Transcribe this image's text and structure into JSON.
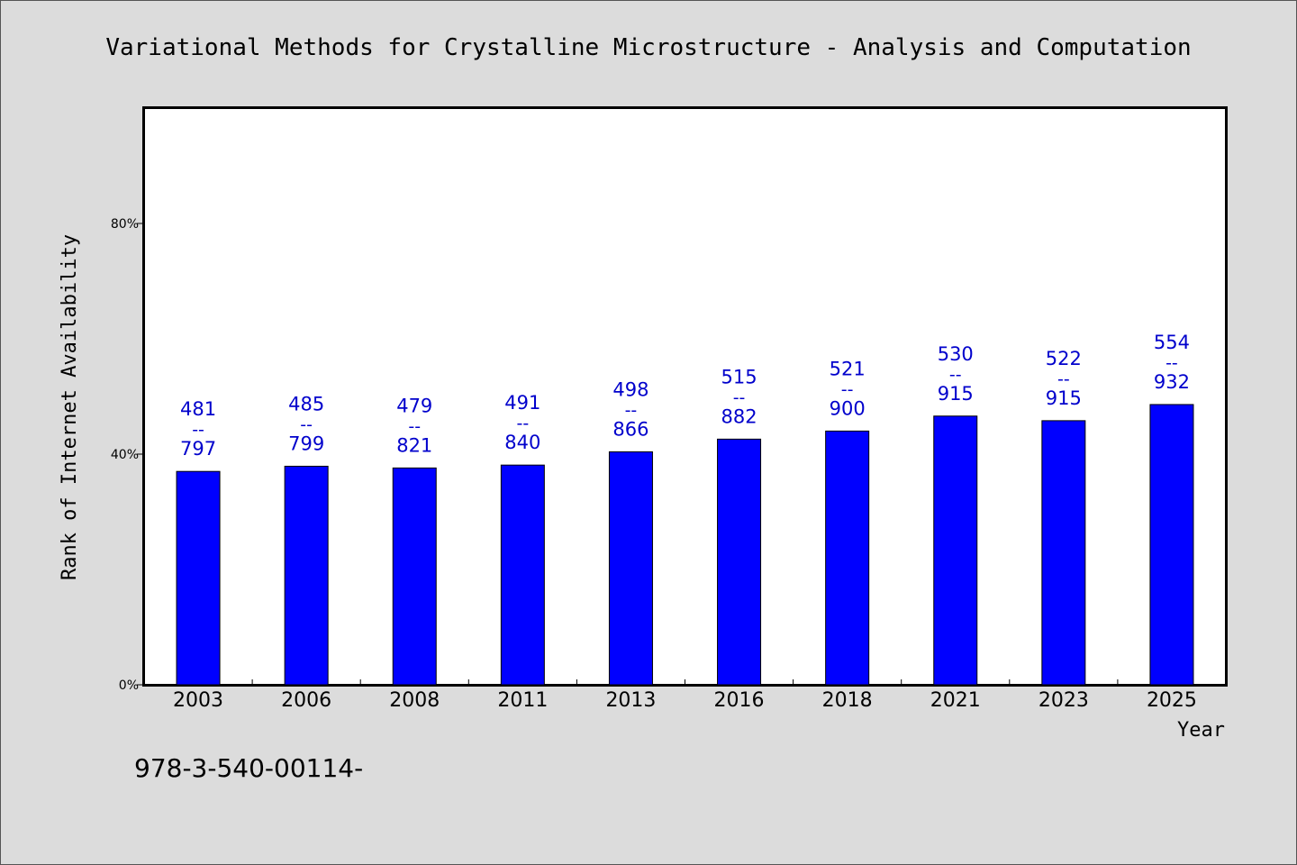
{
  "footer_text": "978-3-540-00114-",
  "chart_data": {
    "type": "bar",
    "title": "Variational Methods for Crystalline Microstructure - Analysis and Computation",
    "xlabel": "Year",
    "ylabel": "Rank of Internet Availability",
    "ylim": [
      0,
      1
    ],
    "y_ticks": [
      {
        "value": 0,
        "label": "0%"
      },
      {
        "value": 0.4,
        "label": "40%"
      },
      {
        "value": 0.8,
        "label": "80%"
      }
    ],
    "grid": false,
    "bar_color": "#0000ff",
    "label_color": "#0000cc",
    "categories": [
      "2003",
      "2006",
      "2008",
      "2011",
      "2013",
      "2016",
      "2018",
      "2021",
      "2023",
      "2025"
    ],
    "values": [
      0.37,
      0.379,
      0.376,
      0.381,
      0.404,
      0.426,
      0.44,
      0.466,
      0.458,
      0.486
    ],
    "labels_top": [
      "481",
      "485",
      "479",
      "491",
      "498",
      "515",
      "521",
      "530",
      "522",
      "554"
    ],
    "labels_sep": "--",
    "labels_bottom": [
      "797",
      "799",
      "821",
      "840",
      "866",
      "882",
      "900",
      "915",
      "915",
      "932"
    ]
  }
}
